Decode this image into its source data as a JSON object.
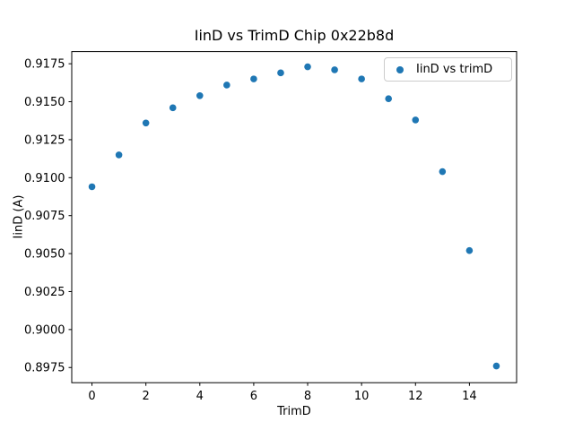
{
  "chart_data": {
    "type": "scatter",
    "title": "IinD vs TrimD Chip 0x22b8d",
    "xlabel": "TrimD",
    "ylabel": "IinD (A)",
    "legend": {
      "label": "IinD vs trimD",
      "position": "upper right"
    },
    "x": [
      0,
      1,
      2,
      3,
      4,
      5,
      6,
      7,
      8,
      9,
      10,
      11,
      12,
      13,
      14,
      15
    ],
    "y": [
      0.9094,
      0.9115,
      0.9136,
      0.9146,
      0.9154,
      0.9161,
      0.9165,
      0.9169,
      0.9173,
      0.9171,
      0.9165,
      0.9152,
      0.9138,
      0.9104,
      0.9052,
      0.8976
    ],
    "xlim": [
      -0.75,
      15.75
    ],
    "ylim": [
      0.8965,
      0.9183
    ],
    "xticks": [
      {
        "v": 0,
        "label": "0"
      },
      {
        "v": 2,
        "label": "2"
      },
      {
        "v": 4,
        "label": "4"
      },
      {
        "v": 6,
        "label": "6"
      },
      {
        "v": 8,
        "label": "8"
      },
      {
        "v": 10,
        "label": "10"
      },
      {
        "v": 12,
        "label": "12"
      },
      {
        "v": 14,
        "label": "14"
      }
    ],
    "yticks": [
      {
        "v": 0.8975,
        "label": "0.8975"
      },
      {
        "v": 0.9,
        "label": "0.9000"
      },
      {
        "v": 0.9025,
        "label": "0.9025"
      },
      {
        "v": 0.905,
        "label": "0.9050"
      },
      {
        "v": 0.9075,
        "label": "0.9075"
      },
      {
        "v": 0.91,
        "label": "0.9100"
      },
      {
        "v": 0.9125,
        "label": "0.9125"
      },
      {
        "v": 0.915,
        "label": "0.9150"
      },
      {
        "v": 0.9175,
        "label": "0.9175"
      }
    ],
    "grid": false,
    "legend_visible": true,
    "colors": {
      "marker": "#1f77b4",
      "axis": "#000000",
      "legend_border": "#cccccc",
      "background": "#ffffff"
    }
  }
}
